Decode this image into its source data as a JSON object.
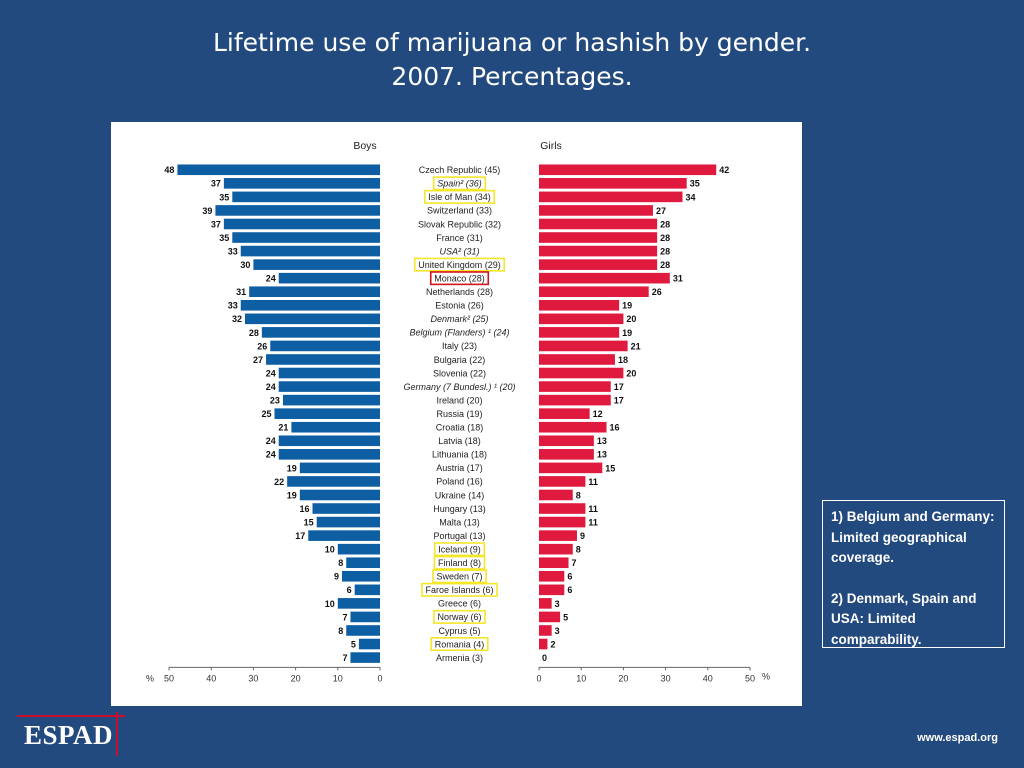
{
  "header": {
    "title_line1": "Lifetime use of marijuana or hashish by gender.",
    "title_line2": "2007. Percentages."
  },
  "notes": {
    "note1": "1) Belgium and Germany: Limited geographical coverage.",
    "note2": "2) Denmark, Spain and USA: Limited comparability."
  },
  "footer": {
    "logo": "ESPAD",
    "website": "www.espad.org"
  },
  "colors": {
    "background": "#234a7e",
    "boys": "#0e5ea3",
    "girls": "#e0193f",
    "highlight_yellow": "#f5e629",
    "highlight_red": "#d4121f"
  },
  "chart_data": {
    "type": "bar",
    "orientation": "horizontal-back-to-back",
    "panels": [
      "Boys",
      "Girls"
    ],
    "unit": "%",
    "xlim": [
      0,
      50
    ],
    "ticks_left": [
      50,
      40,
      30,
      20,
      10,
      0
    ],
    "ticks_right": [
      0,
      10,
      20,
      30,
      40,
      50
    ],
    "categories": [
      {
        "label": "Czech Republic (45)",
        "style": "normal",
        "highlight": "none"
      },
      {
        "label": "Spain² (36)",
        "style": "italic",
        "highlight": "yellow"
      },
      {
        "label": "Isle of Man (34)",
        "style": "normal",
        "highlight": "yellow"
      },
      {
        "label": "Switzerland (33)",
        "style": "normal",
        "highlight": "none"
      },
      {
        "label": "Slovak Republic (32)",
        "style": "normal",
        "highlight": "none"
      },
      {
        "label": "France (31)",
        "style": "normal",
        "highlight": "none"
      },
      {
        "label": "USA² (31)",
        "style": "italic",
        "highlight": "none"
      },
      {
        "label": "United Kingdom (29)",
        "style": "normal",
        "highlight": "yellow"
      },
      {
        "label": "Monaco (28)",
        "style": "normal",
        "highlight": "red"
      },
      {
        "label": "Netherlands (28)",
        "style": "normal",
        "highlight": "none"
      },
      {
        "label": "Estonia (26)",
        "style": "normal",
        "highlight": "none"
      },
      {
        "label": "Denmark² (25)",
        "style": "italic",
        "highlight": "none"
      },
      {
        "label": "Belgium (Flanders) ¹ (24)",
        "style": "italic",
        "highlight": "none"
      },
      {
        "label": "Italy (23)",
        "style": "normal",
        "highlight": "none"
      },
      {
        "label": "Bulgaria (22)",
        "style": "normal",
        "highlight": "none"
      },
      {
        "label": "Slovenia (22)",
        "style": "normal",
        "highlight": "none"
      },
      {
        "label": "Germany (7 Bundesl.) ¹ (20)",
        "style": "italic",
        "highlight": "none"
      },
      {
        "label": "Ireland (20)",
        "style": "normal",
        "highlight": "none"
      },
      {
        "label": "Russia (19)",
        "style": "normal",
        "highlight": "none"
      },
      {
        "label": "Croatia (18)",
        "style": "normal",
        "highlight": "none"
      },
      {
        "label": "Latvia (18)",
        "style": "normal",
        "highlight": "none"
      },
      {
        "label": "Lithuania (18)",
        "style": "normal",
        "highlight": "none"
      },
      {
        "label": "Austria (17)",
        "style": "normal",
        "highlight": "none"
      },
      {
        "label": "Poland (16)",
        "style": "normal",
        "highlight": "none"
      },
      {
        "label": "Ukraine (14)",
        "style": "normal",
        "highlight": "none"
      },
      {
        "label": "Hungary (13)",
        "style": "normal",
        "highlight": "none"
      },
      {
        "label": "Malta (13)",
        "style": "normal",
        "highlight": "none"
      },
      {
        "label": "Portugal (13)",
        "style": "normal",
        "highlight": "none"
      },
      {
        "label": "Iceland (9)",
        "style": "normal",
        "highlight": "yellow"
      },
      {
        "label": "Finland (8)",
        "style": "normal",
        "highlight": "yellow"
      },
      {
        "label": "Sweden (7)",
        "style": "normal",
        "highlight": "yellow"
      },
      {
        "label": "Faroe Islands (6)",
        "style": "normal",
        "highlight": "yellow"
      },
      {
        "label": "Greece (6)",
        "style": "normal",
        "highlight": "none"
      },
      {
        "label": "Norway (6)",
        "style": "normal",
        "highlight": "yellow"
      },
      {
        "label": "Cyprus (5)",
        "style": "normal",
        "highlight": "none"
      },
      {
        "label": "Romania (4)",
        "style": "normal",
        "highlight": "yellow"
      },
      {
        "label": "Armenia (3)",
        "style": "normal",
        "highlight": "none"
      }
    ],
    "series": [
      {
        "name": "Boys",
        "values": [
          48,
          37,
          35,
          39,
          37,
          35,
          33,
          30,
          24,
          31,
          33,
          32,
          28,
          26,
          27,
          24,
          24,
          23,
          25,
          21,
          24,
          24,
          19,
          22,
          19,
          16,
          15,
          17,
          10,
          8,
          9,
          6,
          10,
          7,
          8,
          5,
          7
        ]
      },
      {
        "name": "Girls",
        "values": [
          42,
          35,
          34,
          27,
          28,
          28,
          28,
          28,
          31,
          26,
          19,
          20,
          19,
          21,
          18,
          20,
          17,
          17,
          12,
          16,
          13,
          13,
          15,
          11,
          8,
          11,
          11,
          9,
          8,
          7,
          6,
          6,
          3,
          5,
          3,
          2,
          0
        ]
      }
    ]
  }
}
